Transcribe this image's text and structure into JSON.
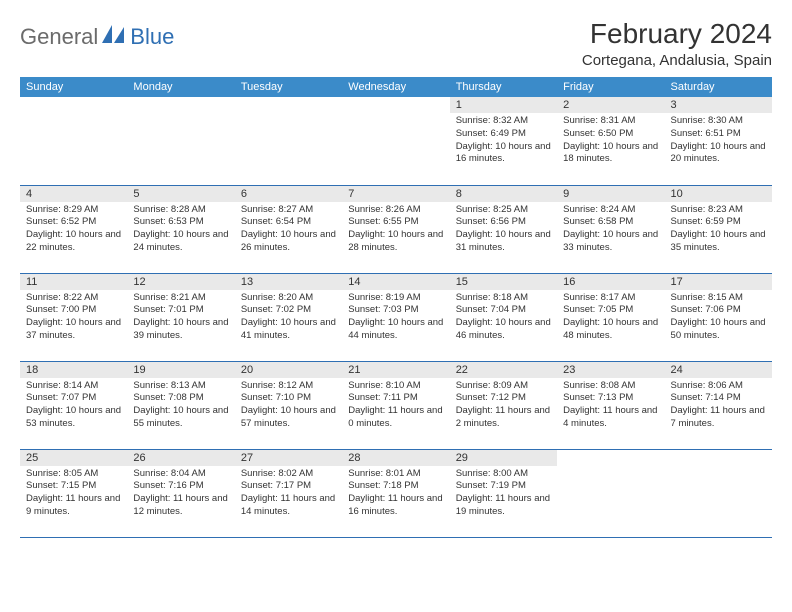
{
  "logo": {
    "text1": "General",
    "text2": "Blue"
  },
  "title": "February 2024",
  "location": "Cortegana, Andalusia, Spain",
  "colors": {
    "header_bg": "#3b8bc9",
    "header_text": "#ffffff",
    "daynum_bg": "#e9e9e9",
    "body_text": "#333333",
    "rule": "#2f6fb3",
    "logo_gray": "#6b6b6b",
    "logo_blue": "#2f6fb3"
  },
  "typography": {
    "title_fontsize": 28,
    "location_fontsize": 15,
    "header_fontsize": 11,
    "daynum_fontsize": 11,
    "body_fontsize": 9.5
  },
  "weekdays": [
    "Sunday",
    "Monday",
    "Tuesday",
    "Wednesday",
    "Thursday",
    "Friday",
    "Saturday"
  ],
  "weeks": [
    [
      null,
      null,
      null,
      null,
      {
        "n": "1",
        "sunrise": "8:32 AM",
        "sunset": "6:49 PM",
        "daylight": "10 hours and 16 minutes."
      },
      {
        "n": "2",
        "sunrise": "8:31 AM",
        "sunset": "6:50 PM",
        "daylight": "10 hours and 18 minutes."
      },
      {
        "n": "3",
        "sunrise": "8:30 AM",
        "sunset": "6:51 PM",
        "daylight": "10 hours and 20 minutes."
      }
    ],
    [
      {
        "n": "4",
        "sunrise": "8:29 AM",
        "sunset": "6:52 PM",
        "daylight": "10 hours and 22 minutes."
      },
      {
        "n": "5",
        "sunrise": "8:28 AM",
        "sunset": "6:53 PM",
        "daylight": "10 hours and 24 minutes."
      },
      {
        "n": "6",
        "sunrise": "8:27 AM",
        "sunset": "6:54 PM",
        "daylight": "10 hours and 26 minutes."
      },
      {
        "n": "7",
        "sunrise": "8:26 AM",
        "sunset": "6:55 PM",
        "daylight": "10 hours and 28 minutes."
      },
      {
        "n": "8",
        "sunrise": "8:25 AM",
        "sunset": "6:56 PM",
        "daylight": "10 hours and 31 minutes."
      },
      {
        "n": "9",
        "sunrise": "8:24 AM",
        "sunset": "6:58 PM",
        "daylight": "10 hours and 33 minutes."
      },
      {
        "n": "10",
        "sunrise": "8:23 AM",
        "sunset": "6:59 PM",
        "daylight": "10 hours and 35 minutes."
      }
    ],
    [
      {
        "n": "11",
        "sunrise": "8:22 AM",
        "sunset": "7:00 PM",
        "daylight": "10 hours and 37 minutes."
      },
      {
        "n": "12",
        "sunrise": "8:21 AM",
        "sunset": "7:01 PM",
        "daylight": "10 hours and 39 minutes."
      },
      {
        "n": "13",
        "sunrise": "8:20 AM",
        "sunset": "7:02 PM",
        "daylight": "10 hours and 41 minutes."
      },
      {
        "n": "14",
        "sunrise": "8:19 AM",
        "sunset": "7:03 PM",
        "daylight": "10 hours and 44 minutes."
      },
      {
        "n": "15",
        "sunrise": "8:18 AM",
        "sunset": "7:04 PM",
        "daylight": "10 hours and 46 minutes."
      },
      {
        "n": "16",
        "sunrise": "8:17 AM",
        "sunset": "7:05 PM",
        "daylight": "10 hours and 48 minutes."
      },
      {
        "n": "17",
        "sunrise": "8:15 AM",
        "sunset": "7:06 PM",
        "daylight": "10 hours and 50 minutes."
      }
    ],
    [
      {
        "n": "18",
        "sunrise": "8:14 AM",
        "sunset": "7:07 PM",
        "daylight": "10 hours and 53 minutes."
      },
      {
        "n": "19",
        "sunrise": "8:13 AM",
        "sunset": "7:08 PM",
        "daylight": "10 hours and 55 minutes."
      },
      {
        "n": "20",
        "sunrise": "8:12 AM",
        "sunset": "7:10 PM",
        "daylight": "10 hours and 57 minutes."
      },
      {
        "n": "21",
        "sunrise": "8:10 AM",
        "sunset": "7:11 PM",
        "daylight": "11 hours and 0 minutes."
      },
      {
        "n": "22",
        "sunrise": "8:09 AM",
        "sunset": "7:12 PM",
        "daylight": "11 hours and 2 minutes."
      },
      {
        "n": "23",
        "sunrise": "8:08 AM",
        "sunset": "7:13 PM",
        "daylight": "11 hours and 4 minutes."
      },
      {
        "n": "24",
        "sunrise": "8:06 AM",
        "sunset": "7:14 PM",
        "daylight": "11 hours and 7 minutes."
      }
    ],
    [
      {
        "n": "25",
        "sunrise": "8:05 AM",
        "sunset": "7:15 PM",
        "daylight": "11 hours and 9 minutes."
      },
      {
        "n": "26",
        "sunrise": "8:04 AM",
        "sunset": "7:16 PM",
        "daylight": "11 hours and 12 minutes."
      },
      {
        "n": "27",
        "sunrise": "8:02 AM",
        "sunset": "7:17 PM",
        "daylight": "11 hours and 14 minutes."
      },
      {
        "n": "28",
        "sunrise": "8:01 AM",
        "sunset": "7:18 PM",
        "daylight": "11 hours and 16 minutes."
      },
      {
        "n": "29",
        "sunrise": "8:00 AM",
        "sunset": "7:19 PM",
        "daylight": "11 hours and 19 minutes."
      },
      null,
      null
    ]
  ],
  "labels": {
    "sunrise": "Sunrise: ",
    "sunset": "Sunset: ",
    "daylight": "Daylight: "
  }
}
